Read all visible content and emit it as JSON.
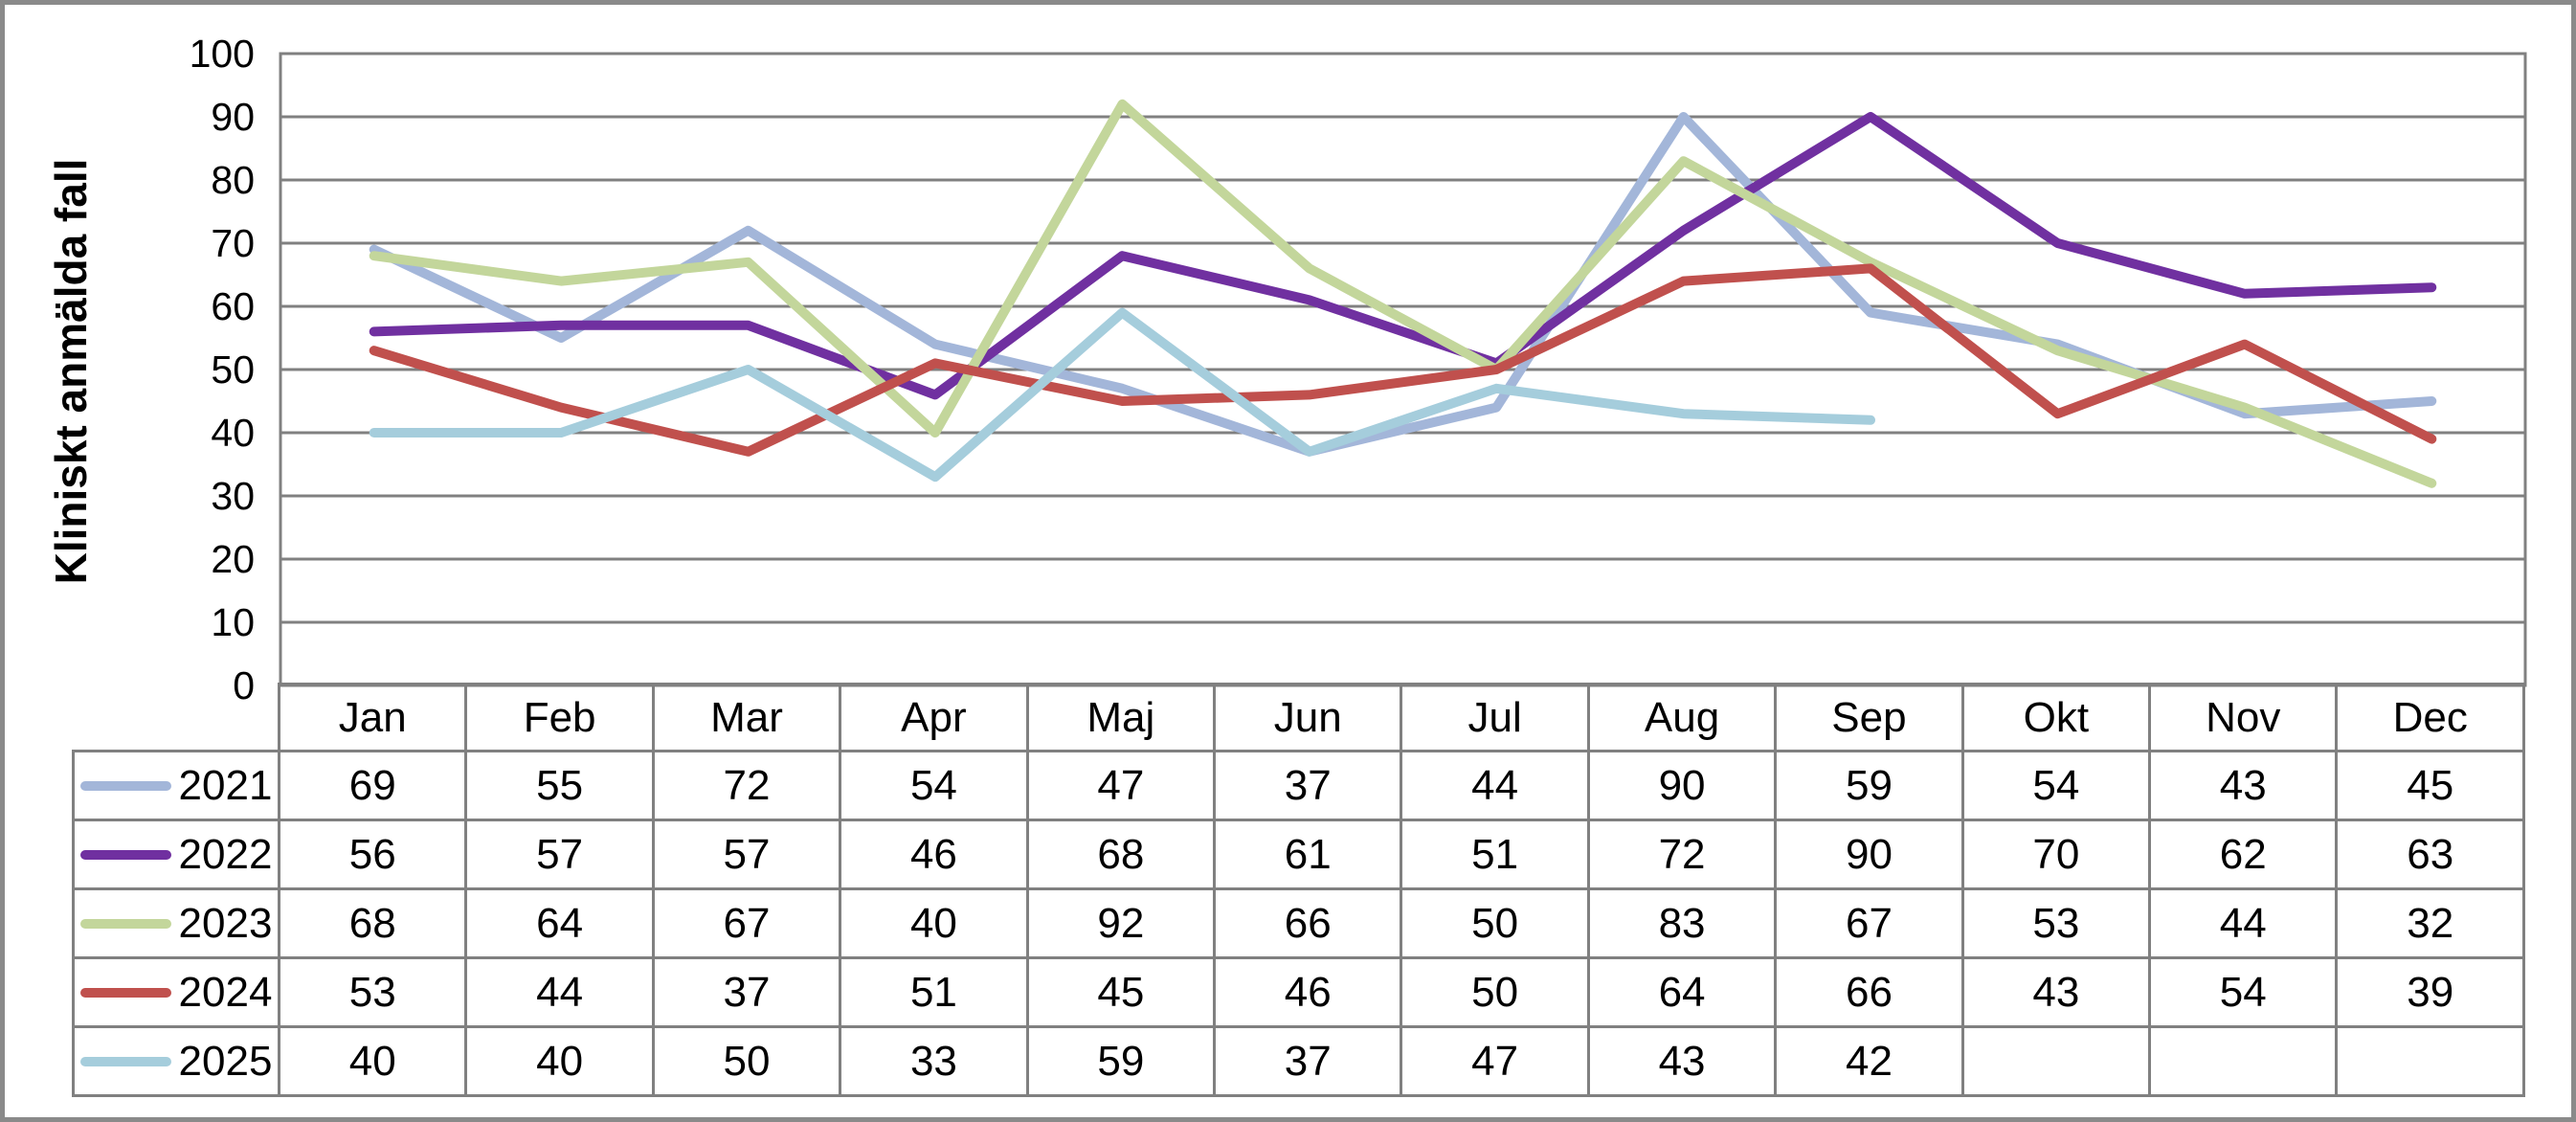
{
  "chart_data": {
    "type": "line",
    "title": "",
    "xlabel": "",
    "ylabel": "Kliniskt anmälda fall",
    "ylim": [
      0,
      100
    ],
    "ytick_step": 10,
    "yticks": [
      0,
      10,
      20,
      30,
      40,
      50,
      60,
      70,
      80,
      90,
      100
    ],
    "grid": true,
    "legend_position": "data-table-left-column",
    "categories": [
      "Jan",
      "Feb",
      "Mar",
      "Apr",
      "Maj",
      "Jun",
      "Jul",
      "Aug",
      "Sep",
      "Okt",
      "Nov",
      "Dec"
    ],
    "series": [
      {
        "name": "2021",
        "color": "#A3B6D9",
        "values": [
          69,
          55,
          72,
          54,
          47,
          37,
          44,
          90,
          59,
          54,
          43,
          45
        ]
      },
      {
        "name": "2022",
        "color": "#7030A0",
        "values": [
          56,
          57,
          57,
          46,
          68,
          61,
          51,
          72,
          90,
          70,
          62,
          63
        ]
      },
      {
        "name": "2023",
        "color": "#C3D69B",
        "values": [
          68,
          64,
          67,
          40,
          92,
          66,
          50,
          83,
          67,
          53,
          44,
          32
        ]
      },
      {
        "name": "2024",
        "color": "#C0504D",
        "values": [
          53,
          44,
          37,
          51,
          45,
          46,
          50,
          64,
          66,
          43,
          54,
          39
        ]
      },
      {
        "name": "2025",
        "color": "#A5CDDC",
        "values": [
          40,
          40,
          50,
          33,
          59,
          37,
          47,
          43,
          42,
          null,
          null,
          null
        ]
      }
    ]
  },
  "colors": {
    "gridline": "#808080",
    "plot_border": "#808080",
    "table_border": "#808080",
    "outer_frame": "#8a8a8a",
    "text": "#000000",
    "background": "#ffffff"
  }
}
